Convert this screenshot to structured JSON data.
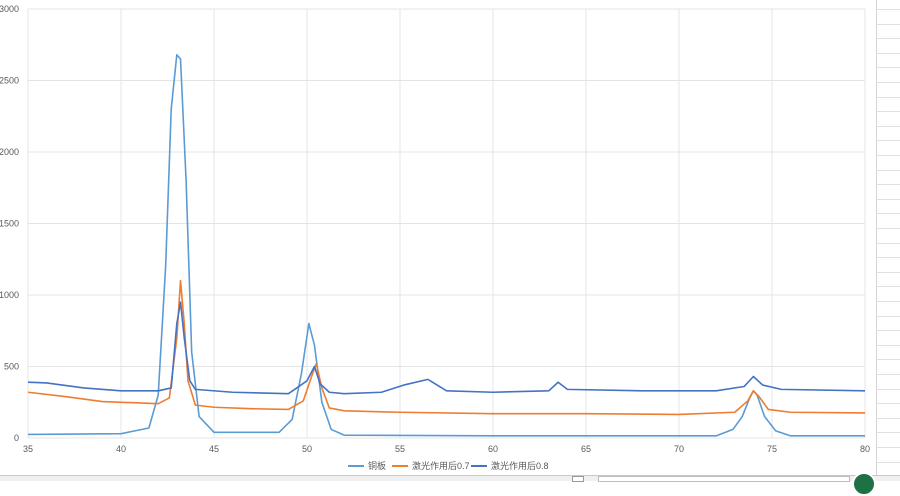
{
  "chart_data": {
    "type": "line",
    "title": "",
    "xlabel": "",
    "ylabel": "",
    "xlim": [
      35,
      80
    ],
    "ylim": [
      0,
      3000
    ],
    "x_ticks": [
      35,
      40,
      45,
      50,
      55,
      60,
      65,
      70,
      75,
      80
    ],
    "y_ticks": [
      0,
      500,
      1000,
      1500,
      2000,
      2500,
      3000
    ],
    "grid": true,
    "legend_position": "bottom",
    "series": [
      {
        "name": "铜板",
        "color": "#5b9bd5",
        "x": [
          35,
          40,
          41.5,
          42.0,
          42.4,
          42.7,
          43.0,
          43.2,
          43.5,
          43.8,
          44.2,
          45,
          48.5,
          49.2,
          49.7,
          50.1,
          50.4,
          50.8,
          51.3,
          52,
          60,
          72,
          72.9,
          73.4,
          73.8,
          74.0,
          74.2,
          74.6,
          75.2,
          76,
          80
        ],
        "y": [
          25,
          30,
          70,
          300,
          1200,
          2300,
          2680,
          2650,
          1800,
          600,
          150,
          40,
          40,
          130,
          450,
          800,
          650,
          250,
          60,
          20,
          15,
          15,
          60,
          150,
          280,
          330,
          300,
          150,
          50,
          15,
          15
        ]
      },
      {
        "name": "激光作用后0.7",
        "color": "#ed7d31",
        "x": [
          35,
          37,
          39,
          41,
          42,
          42.6,
          43.0,
          43.2,
          43.4,
          43.6,
          44,
          45,
          47,
          49,
          49.8,
          50.3,
          50.5,
          50.8,
          51.2,
          52,
          55,
          60,
          65,
          70,
          73,
          73.7,
          74.0,
          74.3,
          74.8,
          76,
          80
        ],
        "y": [
          320,
          290,
          255,
          245,
          240,
          280,
          700,
          1100,
          800,
          400,
          230,
          215,
          205,
          200,
          260,
          450,
          520,
          350,
          210,
          190,
          180,
          170,
          170,
          165,
          180,
          260,
          330,
          290,
          200,
          180,
          175
        ]
      },
      {
        "name": "激光作用后0.8",
        "color": "#4472c4",
        "x": [
          35,
          36,
          38,
          40,
          42,
          42.7,
          43.0,
          43.2,
          43.4,
          43.7,
          44,
          46,
          49,
          50.0,
          50.4,
          50.7,
          51.2,
          52,
          54,
          55.2,
          56.5,
          57.5,
          60,
          63,
          63.5,
          64,
          68,
          72,
          73.5,
          74.0,
          74.5,
          75.5,
          80
        ],
        "y": [
          390,
          385,
          350,
          330,
          330,
          350,
          800,
          950,
          700,
          400,
          340,
          320,
          310,
          400,
          500,
          380,
          320,
          310,
          320,
          370,
          410,
          330,
          320,
          330,
          390,
          340,
          330,
          330,
          360,
          430,
          370,
          340,
          330
        ]
      }
    ]
  }
}
